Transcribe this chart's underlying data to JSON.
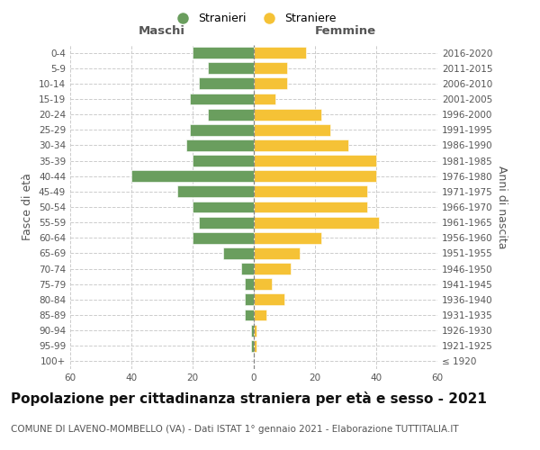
{
  "age_groups": [
    "100+",
    "95-99",
    "90-94",
    "85-89",
    "80-84",
    "75-79",
    "70-74",
    "65-69",
    "60-64",
    "55-59",
    "50-54",
    "45-49",
    "40-44",
    "35-39",
    "30-34",
    "25-29",
    "20-24",
    "15-19",
    "10-14",
    "5-9",
    "0-4"
  ],
  "birth_years": [
    "≤ 1920",
    "1921-1925",
    "1926-1930",
    "1931-1935",
    "1936-1940",
    "1941-1945",
    "1946-1950",
    "1951-1955",
    "1956-1960",
    "1961-1965",
    "1966-1970",
    "1971-1975",
    "1976-1980",
    "1981-1985",
    "1986-1990",
    "1991-1995",
    "1996-2000",
    "2001-2005",
    "2006-2010",
    "2011-2015",
    "2016-2020"
  ],
  "males": [
    0,
    1,
    1,
    3,
    3,
    3,
    4,
    10,
    20,
    18,
    20,
    25,
    40,
    20,
    22,
    21,
    15,
    21,
    18,
    15,
    20
  ],
  "females": [
    0,
    1,
    1,
    4,
    10,
    6,
    12,
    15,
    22,
    41,
    37,
    37,
    40,
    40,
    31,
    25,
    22,
    7,
    11,
    11,
    17
  ],
  "male_color": "#6a9e5e",
  "female_color": "#f5c236",
  "background_color": "#ffffff",
  "grid_color": "#cccccc",
  "title": "Popolazione per cittadinanza straniera per età e sesso - 2021",
  "subtitle": "COMUNE DI LAVENO-MOMBELLO (VA) - Dati ISTAT 1° gennaio 2021 - Elaborazione TUTTITALIA.IT",
  "ylabel_left": "Fasce di età",
  "ylabel_right": "Anni di nascita",
  "xlabel_left": "Maschi",
  "xlabel_right": "Femmine",
  "legend_males": "Stranieri",
  "legend_females": "Straniere",
  "xlim": 60,
  "title_fontsize": 11,
  "subtitle_fontsize": 7.5,
  "axis_label_fontsize": 9,
  "tick_fontsize": 7.5
}
